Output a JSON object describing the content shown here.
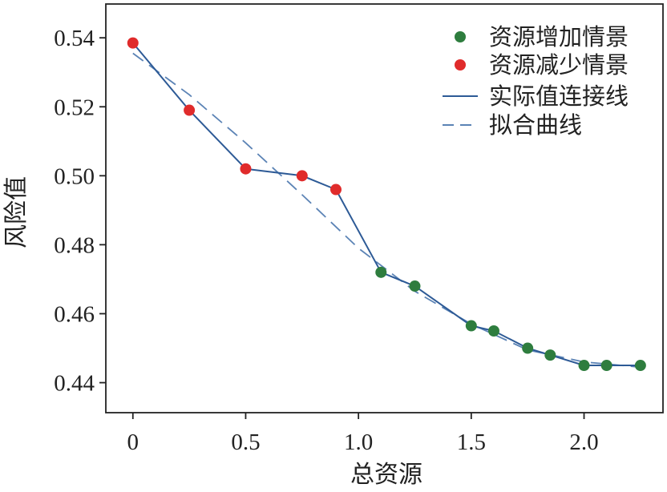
{
  "chart_data": {
    "type": "line",
    "xlabel": "总资源",
    "ylabel": "风险值",
    "xlim": [
      -0.12,
      2.35
    ],
    "ylim": [
      0.4313,
      0.5498
    ],
    "xticks": [
      0,
      0.5,
      1.0,
      1.5,
      2.0
    ],
    "xtick_labels": [
      "0",
      "0.5",
      "1.0",
      "1.5",
      "2.0"
    ],
    "yticks": [
      0.44,
      0.46,
      0.48,
      0.5,
      0.52,
      0.54
    ],
    "ytick_labels": [
      "0.44",
      "0.46",
      "0.48",
      "0.50",
      "0.52",
      "0.54"
    ],
    "series": [
      {
        "name": "资源增加情景",
        "kind": "scatter",
        "color": "#2e7d3e",
        "x": [
          1.1,
          1.25,
          1.5,
          1.6,
          1.75,
          1.85,
          2.0,
          2.1,
          2.25
        ],
        "y": [
          0.472,
          0.468,
          0.4565,
          0.455,
          0.45,
          0.448,
          0.445,
          0.445,
          0.445
        ]
      },
      {
        "name": "资源减少情景",
        "kind": "scatter",
        "color": "#e02b2b",
        "x": [
          0,
          0.25,
          0.5,
          0.75,
          0.9
        ],
        "y": [
          0.5385,
          0.519,
          0.502,
          0.5,
          0.496
        ]
      },
      {
        "name": "实际值连接线",
        "kind": "line",
        "color": "#2d5a96",
        "x": [
          0,
          0.25,
          0.5,
          0.75,
          0.9,
          1.1,
          1.25,
          1.5,
          1.6,
          1.75,
          1.85,
          2.0,
          2.1,
          2.25
        ],
        "y": [
          0.5385,
          0.519,
          0.502,
          0.5,
          0.496,
          0.472,
          0.468,
          0.4565,
          0.455,
          0.45,
          0.448,
          0.445,
          0.445,
          0.445
        ]
      },
      {
        "name": "拟合曲线",
        "kind": "dashed-line",
        "color": "#5b83b5",
        "x": [
          0,
          0.25,
          0.5,
          0.75,
          1.0,
          1.25,
          1.5,
          1.75,
          2.0,
          2.25
        ],
        "y": [
          0.5355,
          0.5235,
          0.5095,
          0.4945,
          0.479,
          0.4665,
          0.457,
          0.4495,
          0.446,
          0.4445
        ]
      }
    ],
    "legend": [
      "资源增加情景",
      "资源减少情景",
      "实际值连接线",
      "拟合曲线"
    ],
    "legend_position": "top-right",
    "grid": false
  }
}
